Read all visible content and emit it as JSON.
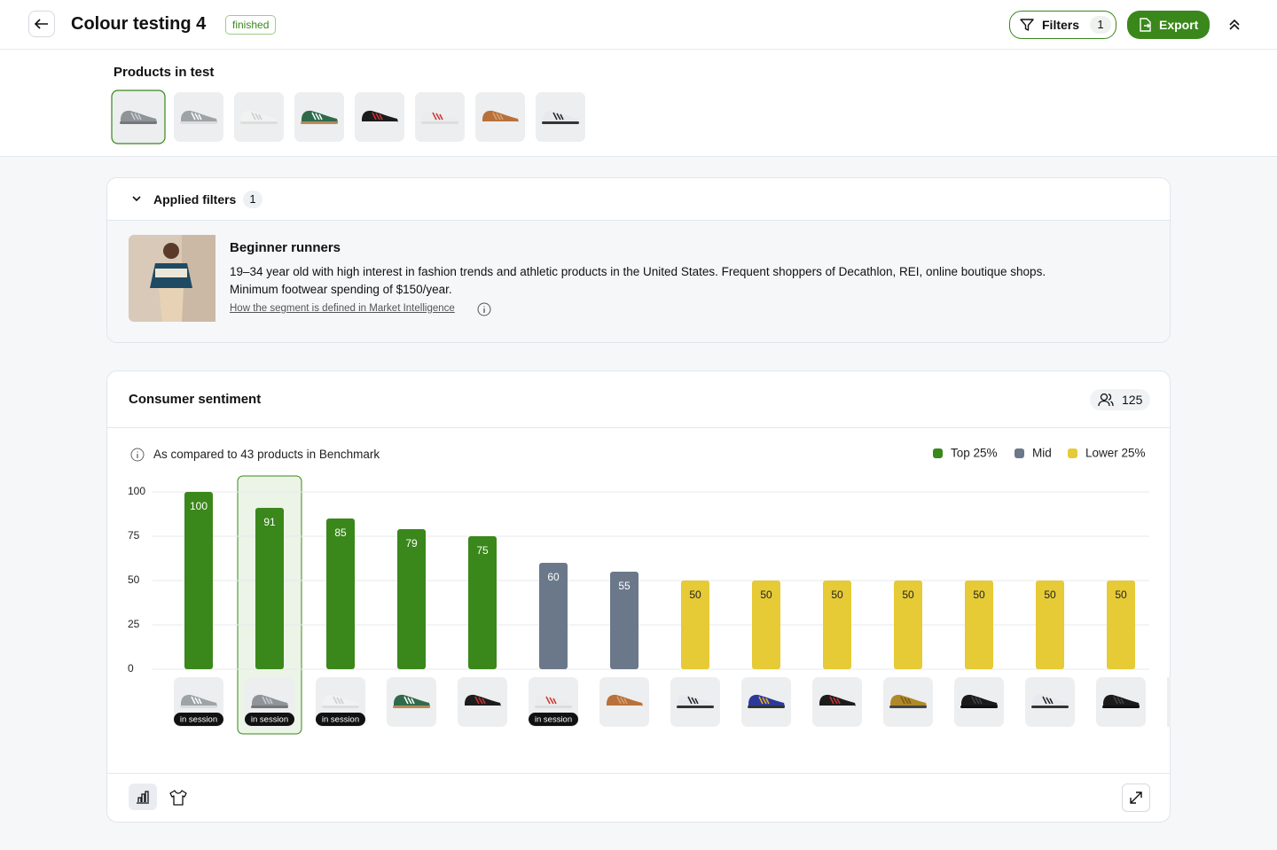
{
  "header": {
    "title": "Colour testing 4",
    "status": "finished",
    "filters_button": "Filters",
    "filters_count": 1,
    "export_button": "Export"
  },
  "products": {
    "title": "Products in test"
  },
  "applied_filters": {
    "title": "Applied filters",
    "count": 1,
    "segment": {
      "name": "Beginner runners",
      "description": [
        "19–34 year old with high interest in fashion trends and athletic products in the United States. Frequent shoppers of Decathlon, REI, online boutique shops.",
        "Minimum footwear spending of $150/year."
      ],
      "link": "How the segment is defined in Market Intelligence"
    }
  },
  "chart_data": {
    "type": "bar",
    "title": "Consumer sentiment",
    "respondents": 125,
    "note": "As compared to 43 products in Benchmark",
    "badges": [
      "in session",
      "in session",
      "in session",
      null,
      null,
      "in session",
      null,
      null,
      null,
      null,
      null,
      null,
      null,
      null
    ],
    "series": [
      {
        "name": "Top 25%",
        "color": "#3a871b",
        "values": [
          100,
          91,
          85,
          79,
          75,
          null,
          null,
          null,
          null,
          null,
          null,
          null,
          null,
          null
        ]
      },
      {
        "name": "Mid",
        "color": "#6b788a",
        "values": [
          null,
          null,
          null,
          null,
          null,
          60,
          55,
          null,
          null,
          null,
          null,
          null,
          null,
          null
        ]
      },
      {
        "name": "Lower 25%",
        "color": "#e6ca36",
        "values": [
          null,
          null,
          null,
          null,
          null,
          null,
          null,
          50,
          50,
          50,
          50,
          50,
          50,
          50
        ]
      }
    ],
    "ylim": [
      0,
      100
    ],
    "yticks": [
      0,
      25,
      50,
      75,
      100
    ],
    "grid": true
  }
}
